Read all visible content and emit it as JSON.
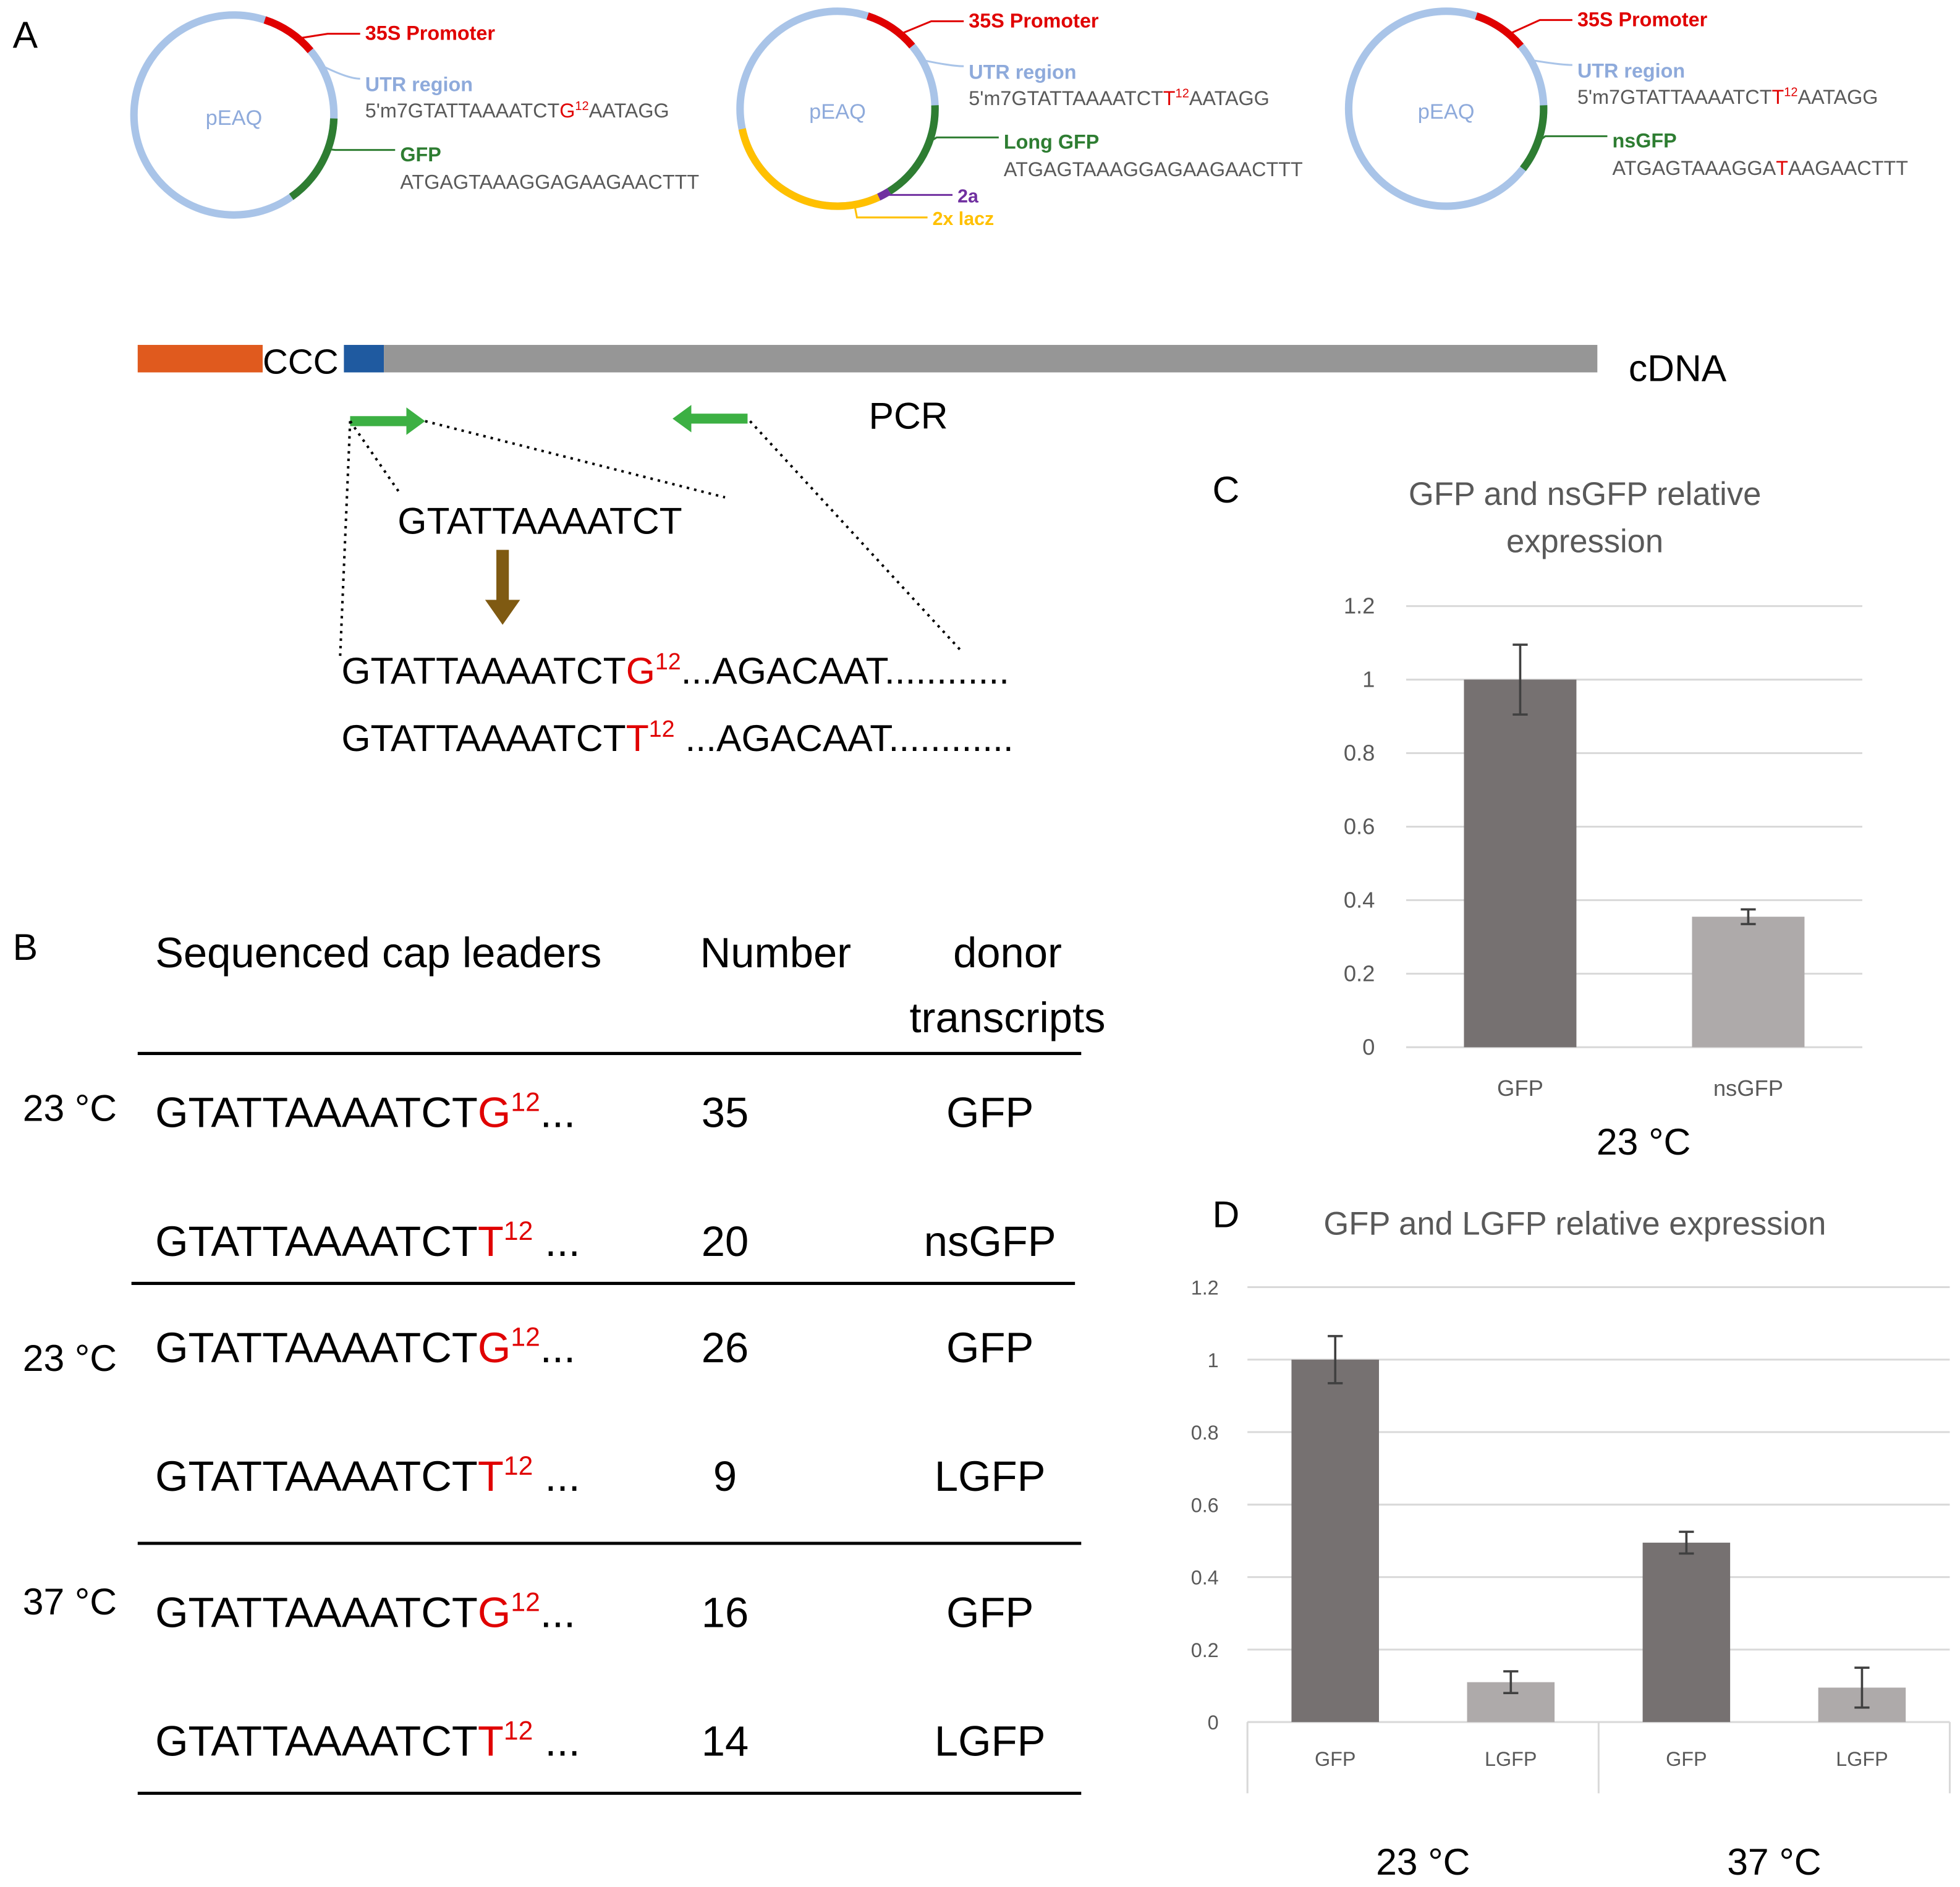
{
  "panel_labels": [
    "A",
    "B",
    "C",
    "D"
  ],
  "plasmids": [
    {
      "name": "pEAQ",
      "promoter": "35S Promoter",
      "utr": "UTR region",
      "utr_seq": [
        "5'm7GTATTAAAATCT",
        "G",
        "12",
        "AATAGG"
      ],
      "gene": "GFP",
      "gene_seq": [
        "ATGAGTAAAGGAGAAGAACTTT"
      ],
      "extras": []
    },
    {
      "name": "pEAQ",
      "promoter": "35S Promoter",
      "utr": "UTR region",
      "utr_seq": [
        "5'm7GTATTAAAATCT",
        "T",
        "12",
        "AATAGG"
      ],
      "gene": "Long GFP",
      "gene_seq": [
        "ATGAGTAAAGGAGAAGAACTTT"
      ],
      "extras": [
        "2a",
        "2x lacz"
      ]
    },
    {
      "name": "pEAQ",
      "promoter": "35S Promoter",
      "utr": "UTR region",
      "utr_seq": [
        "5'm7GTATTAAAATCT",
        "T",
        "12",
        "AATAGG"
      ],
      "gene": "nsGFP",
      "gene_seq": [
        "ATGAGTAAAGGA",
        "T",
        "AAGAACTTT"
      ],
      "extras": []
    }
  ],
  "cdna": {
    "linker": "CCC",
    "label": "cDNA",
    "pcr": "PCR",
    "primer": "GTATTAAAATCT",
    "sequences": [
      [
        "GTATTAAAATCT",
        "G",
        "12",
        "...AGACAAT............"
      ],
      [
        "GTATTAAAATCT",
        "T",
        "12",
        " ...AGACAAT............"
      ]
    ]
  },
  "table": {
    "header": [
      "Sequenced cap leaders",
      "Number",
      "donor transcripts"
    ],
    "temperatures": [
      "23 °C",
      "23 °C",
      "37 °C"
    ],
    "rows": [
      [
        [
          "GTATTAAAATCT",
          "G",
          "12",
          "..."
        ],
        "35",
        "GFP"
      ],
      [
        [
          "GTATTAAAATCT",
          "T",
          "12",
          " ..."
        ],
        "20",
        "nsGFP"
      ],
      [
        [
          "GTATTAAAATCT",
          "G",
          "12",
          "..."
        ],
        "26",
        "GFP"
      ],
      [
        [
          "GTATTAAAATCT",
          "T",
          "12",
          " ..."
        ],
        "9",
        "LGFP"
      ],
      [
        [
          "GTATTAAAATCT",
          "G",
          "12",
          "..."
        ],
        "16",
        "GFP"
      ],
      [
        [
          "GTATTAAAATCT",
          "T",
          "12",
          " ..."
        ],
        "14",
        "LGFP"
      ]
    ]
  },
  "chart_data": [
    {
      "type": "bar",
      "title": "GFP and nsGFP relative expression",
      "categories": [
        "GFP",
        "nsGFP"
      ],
      "values": [
        1,
        0.355
      ],
      "errors": [
        0.095,
        0.02
      ],
      "colors": [
        "#767171",
        "#aeaaaa"
      ],
      "ylim": [
        0,
        1.2
      ],
      "yticks": [
        0,
        0.2,
        0.4,
        0.6,
        0.8,
        1,
        1.2
      ],
      "grid": true,
      "xlabel": "23 °C"
    },
    {
      "type": "bar",
      "title": "GFP and LGFP relative expression",
      "categories": [
        "GFP",
        "LGFP",
        "GFP",
        "LGFP"
      ],
      "values": [
        1,
        0.11,
        0.495,
        0.095
      ],
      "errors": [
        0.065,
        0.03,
        0.03,
        0.055
      ],
      "colors": [
        "#767171",
        "#aeaaaa",
        "#767171",
        "#aeaaaa"
      ],
      "ylim": [
        0,
        1.2
      ],
      "yticks": [
        0,
        0.2,
        0.4,
        0.6,
        0.8,
        1,
        1.2
      ],
      "grid": true,
      "groups": [
        "23 °C",
        "37 °C"
      ]
    }
  ]
}
